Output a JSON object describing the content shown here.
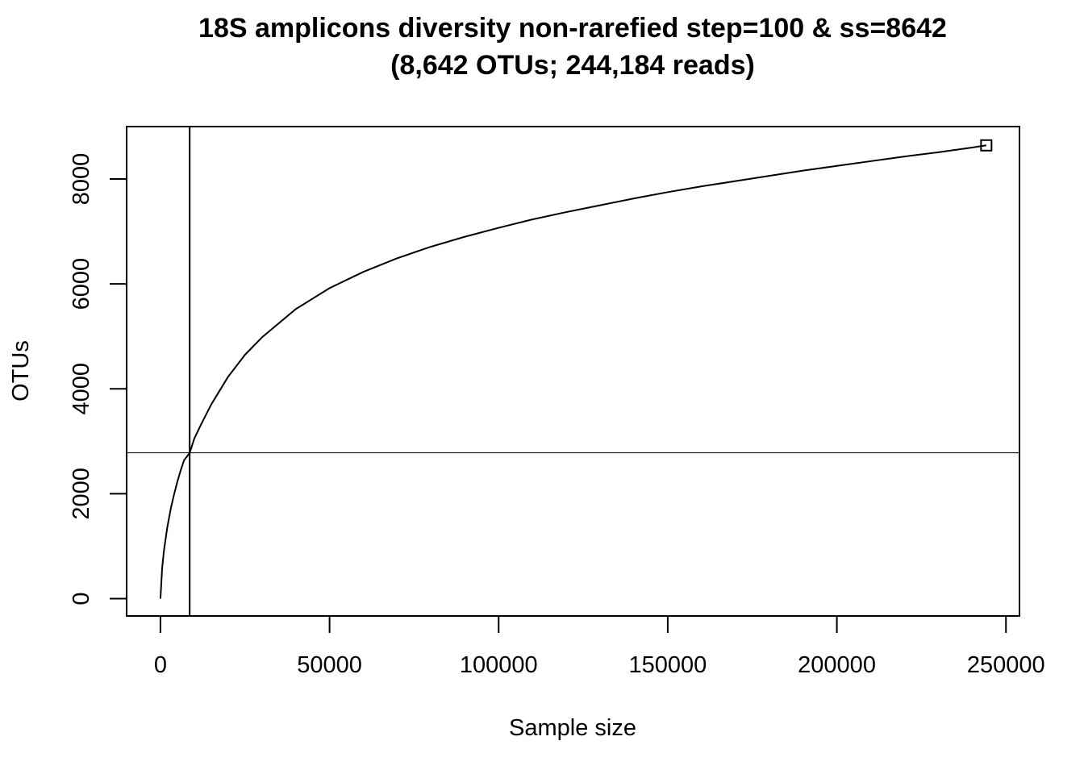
{
  "chart_data": {
    "type": "line",
    "title": "18S amplicons diversity non-rarefied step=100 & ss=8642",
    "subtitle": "(8,642 OTUs; 244,184 reads)",
    "xlabel": "Sample size",
    "ylabel": "OTUs",
    "xlim": [
      -10000,
      254000
    ],
    "ylim": [
      -330,
      9000
    ],
    "x_ticks": [
      0,
      50000,
      100000,
      150000,
      200000,
      250000
    ],
    "y_ticks": [
      0,
      2000,
      4000,
      6000,
      8000
    ],
    "series": [
      {
        "x": [
          0,
          500,
          1000,
          2000,
          3000,
          4000,
          5000,
          6000,
          7000,
          8642,
          10000,
          12000,
          15000,
          20000,
          25000,
          30000,
          40000,
          50000,
          60000,
          70000,
          80000,
          90000,
          100000,
          110000,
          120000,
          130000,
          140000,
          150000,
          160000,
          170000,
          180000,
          190000,
          200000,
          210000,
          220000,
          230000,
          240000,
          244184
        ],
        "y": [
          0,
          580,
          900,
          1350,
          1700,
          1980,
          2230,
          2450,
          2640,
          2780,
          3050,
          3320,
          3700,
          4230,
          4650,
          4980,
          5520,
          5920,
          6230,
          6490,
          6710,
          6900,
          7070,
          7230,
          7370,
          7500,
          7630,
          7750,
          7860,
          7960,
          8060,
          8160,
          8250,
          8340,
          8430,
          8510,
          8600,
          8642
        ]
      }
    ],
    "end_marker": {
      "x": 244184,
      "y": 8642,
      "shape": "square"
    },
    "vline_x": 8642,
    "hline_y": 2780,
    "grid": false,
    "line_color": "#000000"
  }
}
